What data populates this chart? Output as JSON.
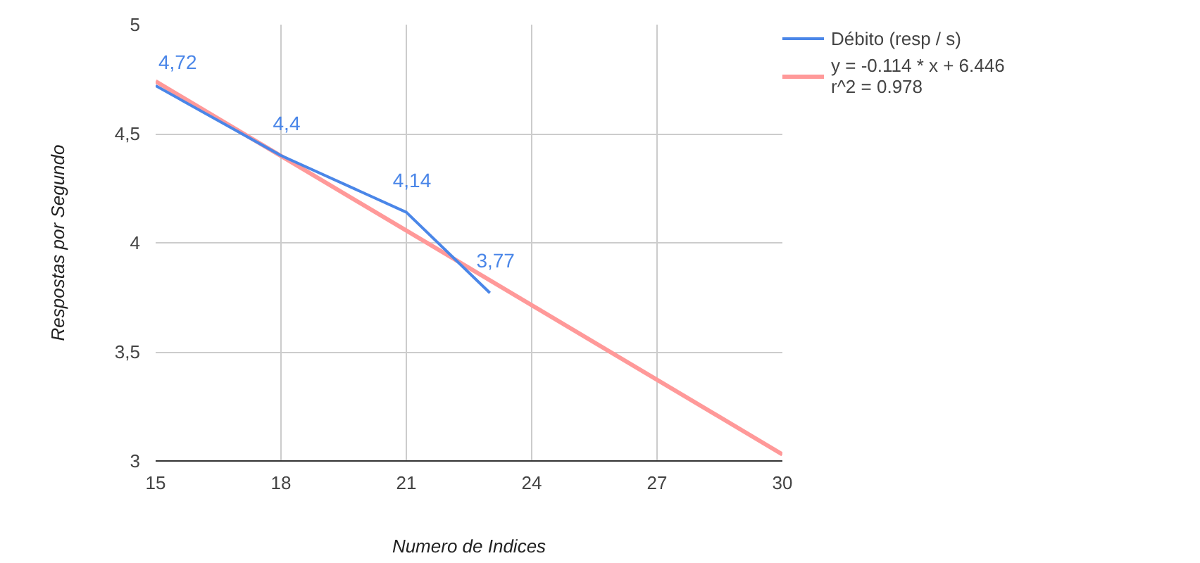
{
  "chart_data": {
    "type": "line",
    "xlabel": "Numero de Indices",
    "ylabel": "Respostas por Segundo",
    "xlim": [
      15,
      30
    ],
    "xticks": [
      15,
      18,
      21,
      24,
      27,
      30
    ],
    "ylim": [
      3,
      5
    ],
    "yticks": [
      3,
      {
        "value": 3.5,
        "label": "3,5"
      },
      4,
      {
        "value": 4.5,
        "label": "4,5"
      },
      5
    ],
    "grid": true,
    "legend": "top right",
    "series": [
      {
        "name": "Débito (resp / s)",
        "color": "#4a86e8",
        "x": [
          15,
          18,
          21,
          23
        ],
        "values": [
          4.72,
          4.4,
          4.14,
          3.77
        ],
        "value_labels": [
          "4,72",
          "4,4",
          "4,14",
          "3,77"
        ]
      },
      {
        "name": "y = -0.114 * x + 6.446\nr^2 = 0.978",
        "color": "#ff9999",
        "type": "line",
        "x": [
          15,
          30
        ],
        "values": [
          4.74,
          3.03
        ]
      }
    ]
  }
}
